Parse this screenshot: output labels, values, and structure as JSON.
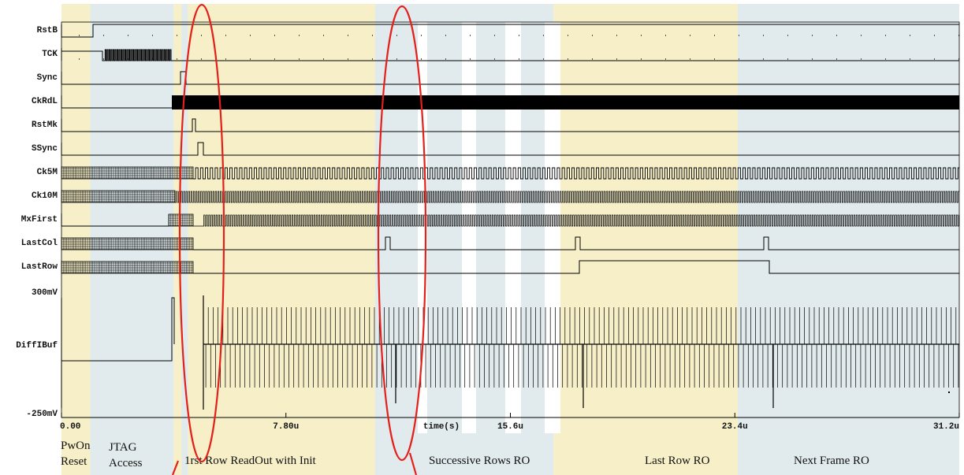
{
  "signals": [
    {
      "name": "RstB"
    },
    {
      "name": "TCK"
    },
    {
      "name": "Sync"
    },
    {
      "name": "CkRdL"
    },
    {
      "name": "RstMk"
    },
    {
      "name": "SSync"
    },
    {
      "name": "Ck5M"
    },
    {
      "name": "Ck10M"
    },
    {
      "name": "MxFirst"
    },
    {
      "name": "LastCol"
    },
    {
      "name": "LastRow"
    }
  ],
  "analog": {
    "name": "DiffIBuf",
    "ymax_label": "300mV",
    "ymin_label": "-250mV"
  },
  "time_axis": {
    "unit_label": "time(s)",
    "ticks": [
      "0.00",
      "7.80u",
      "15.6u",
      "23.4u",
      "31.2u"
    ],
    "tick_values_us": [
      0,
      7.8,
      15.6,
      23.4,
      31.2
    ]
  },
  "phases": [
    {
      "label_line1": "PwOn",
      "label_line2": "Reset",
      "start_us": 0,
      "end_us": 1.0,
      "color": "#f6efc8"
    },
    {
      "label_line1": "JTAG",
      "label_line2": "Access",
      "start_us": 1.0,
      "end_us": 3.9,
      "color": "#e1ebee"
    },
    {
      "label_line1": "1rst Row ReadOut with Init",
      "label_line2": "",
      "start_us": 3.9,
      "end_us": 10.9,
      "color": "#f6efc8"
    },
    {
      "label_line1": "Successive Rows RO",
      "label_line2": "",
      "start_us": 10.9,
      "end_us": 17.1,
      "color": "#e1ebee"
    },
    {
      "label_line1": "Last Row RO",
      "label_line2": "",
      "start_us": 17.1,
      "end_us": 23.5,
      "color": "#f6efc8"
    },
    {
      "label_line1": "Next Frame RO",
      "label_line2": "",
      "start_us": 23.5,
      "end_us": 31.2,
      "color": "#e1ebee"
    }
  ],
  "highlight_color": "#e4201b",
  "trace_color": "#000000"
}
